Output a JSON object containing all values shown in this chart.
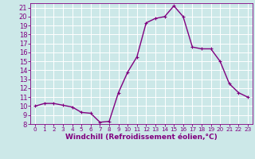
{
  "x": [
    0,
    1,
    2,
    3,
    4,
    5,
    6,
    7,
    8,
    9,
    10,
    11,
    12,
    13,
    14,
    15,
    16,
    17,
    18,
    19,
    20,
    21,
    22,
    23
  ],
  "y": [
    10.0,
    10.3,
    10.3,
    10.1,
    9.9,
    9.3,
    9.2,
    8.2,
    8.3,
    11.5,
    13.8,
    15.5,
    19.3,
    19.8,
    20.0,
    21.2,
    20.0,
    16.6,
    16.4,
    16.4,
    15.0,
    12.5,
    11.5,
    11.0
  ],
  "line_color": "#800080",
  "marker": "+",
  "marker_size": 3,
  "bg_color": "#cce8e8",
  "grid_color": "#ffffff",
  "xlabel": "Windchill (Refroidissement éolien,°C)",
  "xlim": [
    -0.5,
    23.5
  ],
  "ylim": [
    8,
    21.5
  ],
  "yticks": [
    8,
    9,
    10,
    11,
    12,
    13,
    14,
    15,
    16,
    17,
    18,
    19,
    20,
    21
  ],
  "xticks": [
    0,
    1,
    2,
    3,
    4,
    5,
    6,
    7,
    8,
    9,
    10,
    11,
    12,
    13,
    14,
    15,
    16,
    17,
    18,
    19,
    20,
    21,
    22,
    23
  ],
  "xlabel_fontsize": 6.5,
  "tick_fontsize": 6.0,
  "xtick_fontsize": 5.2,
  "tick_color": "#800080",
  "axis_color": "#800080",
  "linewidth": 1.0,
  "markeredgewidth": 0.8
}
